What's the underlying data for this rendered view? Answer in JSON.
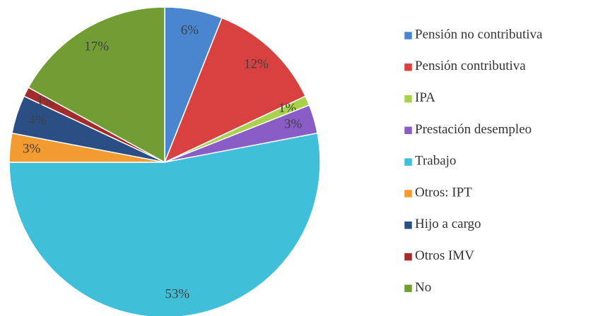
{
  "chart_data": {
    "type": "pie",
    "categories": [
      "Pensión no contributiva",
      "Pensión contributiva",
      "IPA",
      "Prestación desempleo",
      "Trabajo",
      "Otros: IPT",
      "Hijo a cargo",
      "Otros IMV",
      "No"
    ],
    "values": [
      6,
      12,
      1,
      3,
      53,
      3,
      4,
      1,
      17
    ],
    "value_labels": [
      "6%",
      "12%",
      "1%",
      "3%",
      "53%",
      "3%",
      "4%",
      "1%",
      "17%"
    ],
    "colors": [
      "#4a86d0",
      "#d94141",
      "#a9d14b",
      "#8a5cc6",
      "#3fbfda",
      "#f29b30",
      "#2b4f85",
      "#a32b2b",
      "#729d34"
    ],
    "legend": "right"
  }
}
